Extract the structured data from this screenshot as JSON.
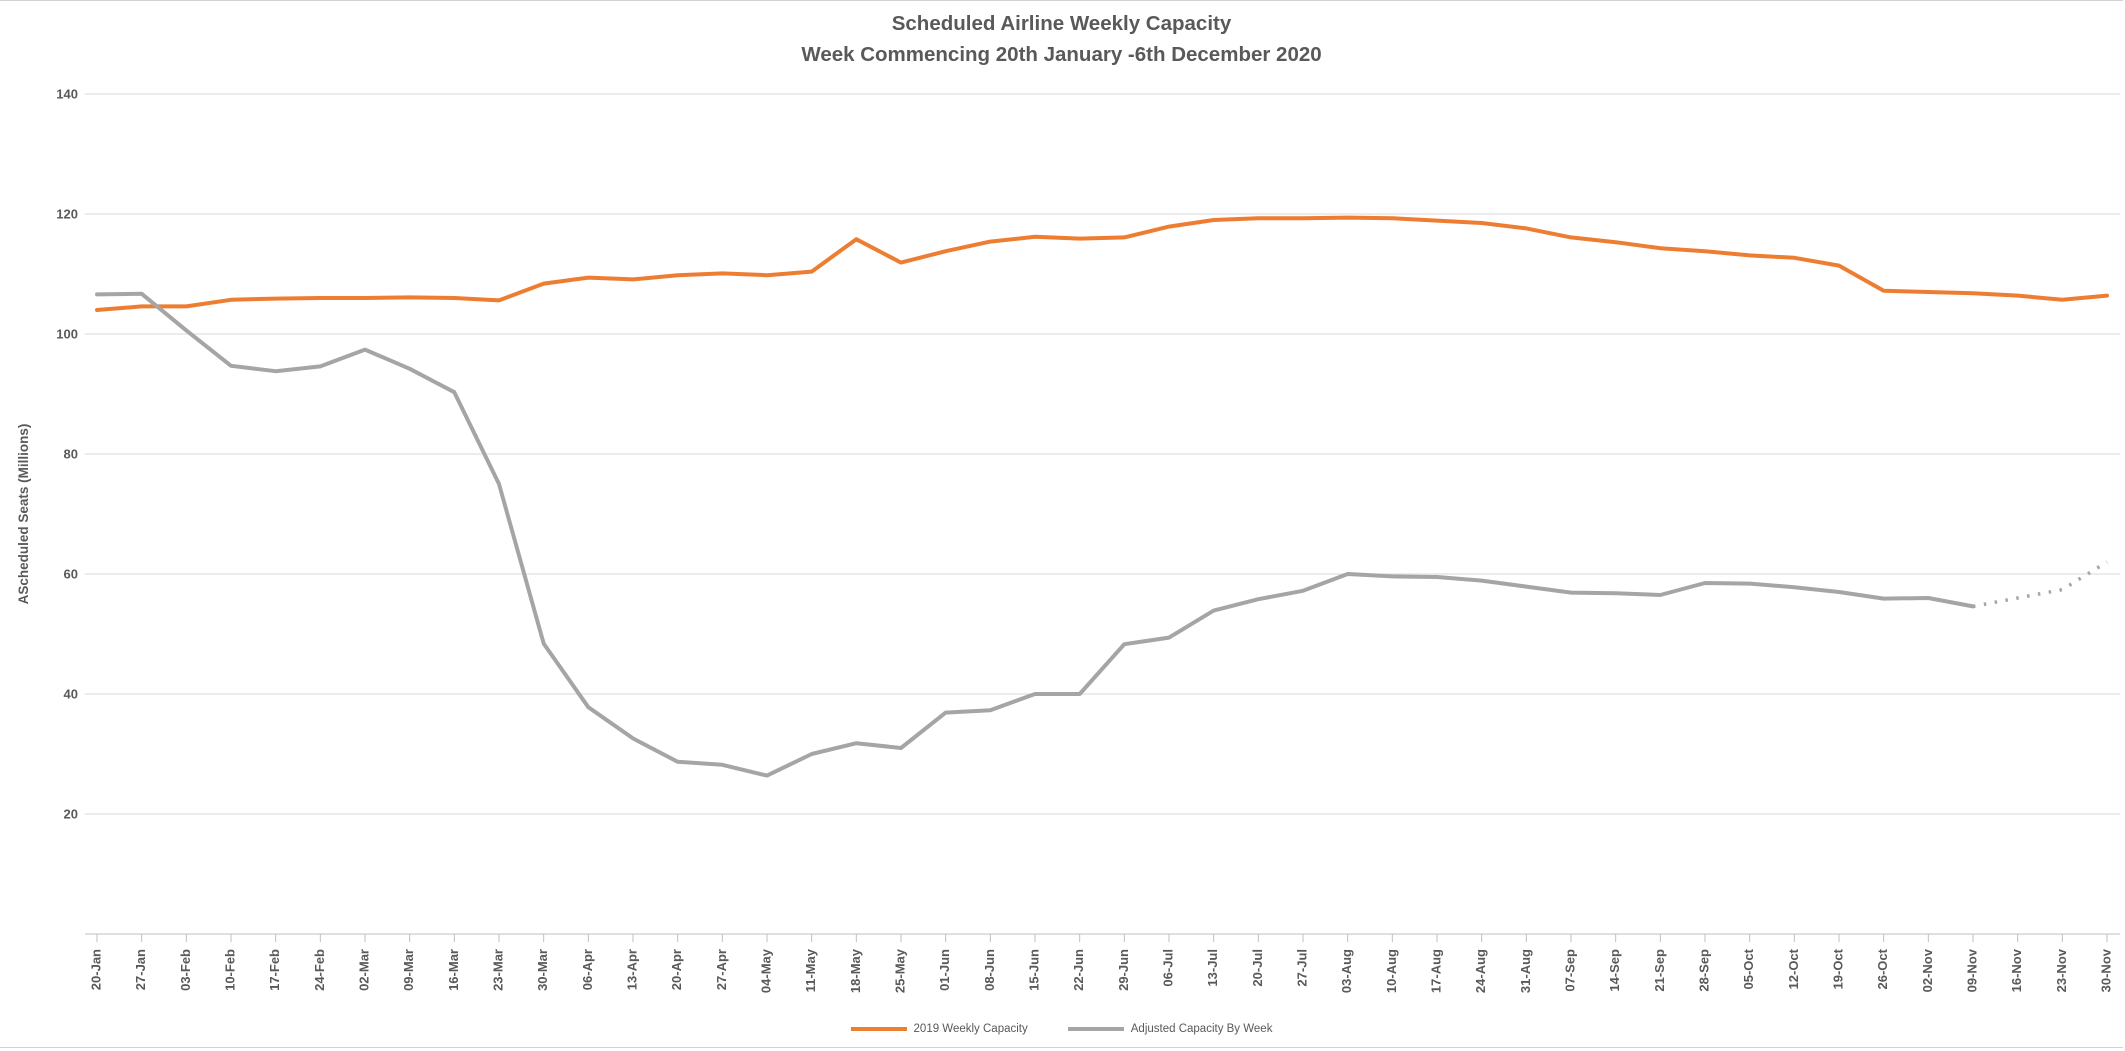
{
  "title": {
    "line1": "Scheduled Airline Weekly Capacity",
    "line2": "Week Commencing 20th January -6th December 2020"
  },
  "chart_data": {
    "type": "line",
    "title": "Scheduled Airline Weekly Capacity",
    "subtitle": "Week Commencing 20th January -6th December 2020",
    "ylabel": "AScheduled Seats (Millions)",
    "xlabel": "",
    "ylim": [
      0,
      145
    ],
    "y_ticks": [
      20,
      40,
      60,
      80,
      100,
      120,
      140
    ],
    "grid": true,
    "legend_position": "bottom",
    "grid_color": "#d9d9d9",
    "axis_color": "#bfbfbf",
    "text_color": "#595959",
    "categories": [
      "20-Jan",
      "27-Jan",
      "03-Feb",
      "10-Feb",
      "17-Feb",
      "24-Feb",
      "02-Mar",
      "09-Mar",
      "16-Mar",
      "23-Mar",
      "30-Mar",
      "06-Apr",
      "13-Apr",
      "20-Apr",
      "27-Apr",
      "04-May",
      "11-May",
      "18-May",
      "25-May",
      "01-Jun",
      "08-Jun",
      "15-Jun",
      "22-Jun",
      "29-Jun",
      "06-Jul",
      "13-Jul",
      "20-Jul",
      "27-Jul",
      "03-Aug",
      "10-Aug",
      "17-Aug",
      "24-Aug",
      "31-Aug",
      "07-Sep",
      "14-Sep",
      "21-Sep",
      "28-Sep",
      "05-Oct",
      "12-Oct",
      "19-Oct",
      "26-Oct",
      "02-Nov",
      "09-Nov",
      "16-Nov",
      "23-Nov",
      "30-Nov"
    ],
    "series": [
      {
        "name": "2019 Weekly Capacity",
        "color": "#ED7D31",
        "style": "solid",
        "values": [
          104.0,
          104.6,
          104.6,
          105.7,
          105.9,
          106.0,
          106.0,
          106.1,
          106.0,
          105.6,
          108.4,
          109.4,
          109.1,
          109.8,
          110.1,
          109.8,
          110.4,
          115.8,
          111.9,
          113.8,
          115.4,
          116.2,
          115.9,
          116.1,
          117.9,
          119.0,
          119.3,
          119.3,
          119.4,
          119.3,
          118.9,
          118.5,
          117.6,
          116.1,
          115.3,
          114.3,
          113.8,
          113.1,
          112.7,
          111.4,
          107.2,
          107.0,
          106.8,
          106.4,
          105.7,
          106.4
        ]
      },
      {
        "name": "Adjusted Capacity By Week",
        "color": "#A5A5A5",
        "style": "solid_then_dotted",
        "dotted_from_index": 42,
        "values": [
          106.6,
          106.7,
          100.6,
          94.7,
          93.8,
          94.6,
          97.4,
          94.2,
          90.3,
          75.0,
          48.4,
          37.8,
          32.6,
          28.7,
          28.2,
          26.4,
          30.0,
          31.8,
          31.0,
          36.9,
          37.3,
          40.0,
          40.0,
          48.3,
          49.4,
          53.9,
          55.8,
          57.2,
          60.0,
          59.6,
          59.5,
          58.9,
          57.9,
          56.9,
          56.8,
          56.5,
          58.5,
          58.4,
          57.8,
          57.0,
          55.9,
          56.0,
          54.6,
          56.0,
          57.4,
          62.0
        ]
      }
    ]
  }
}
